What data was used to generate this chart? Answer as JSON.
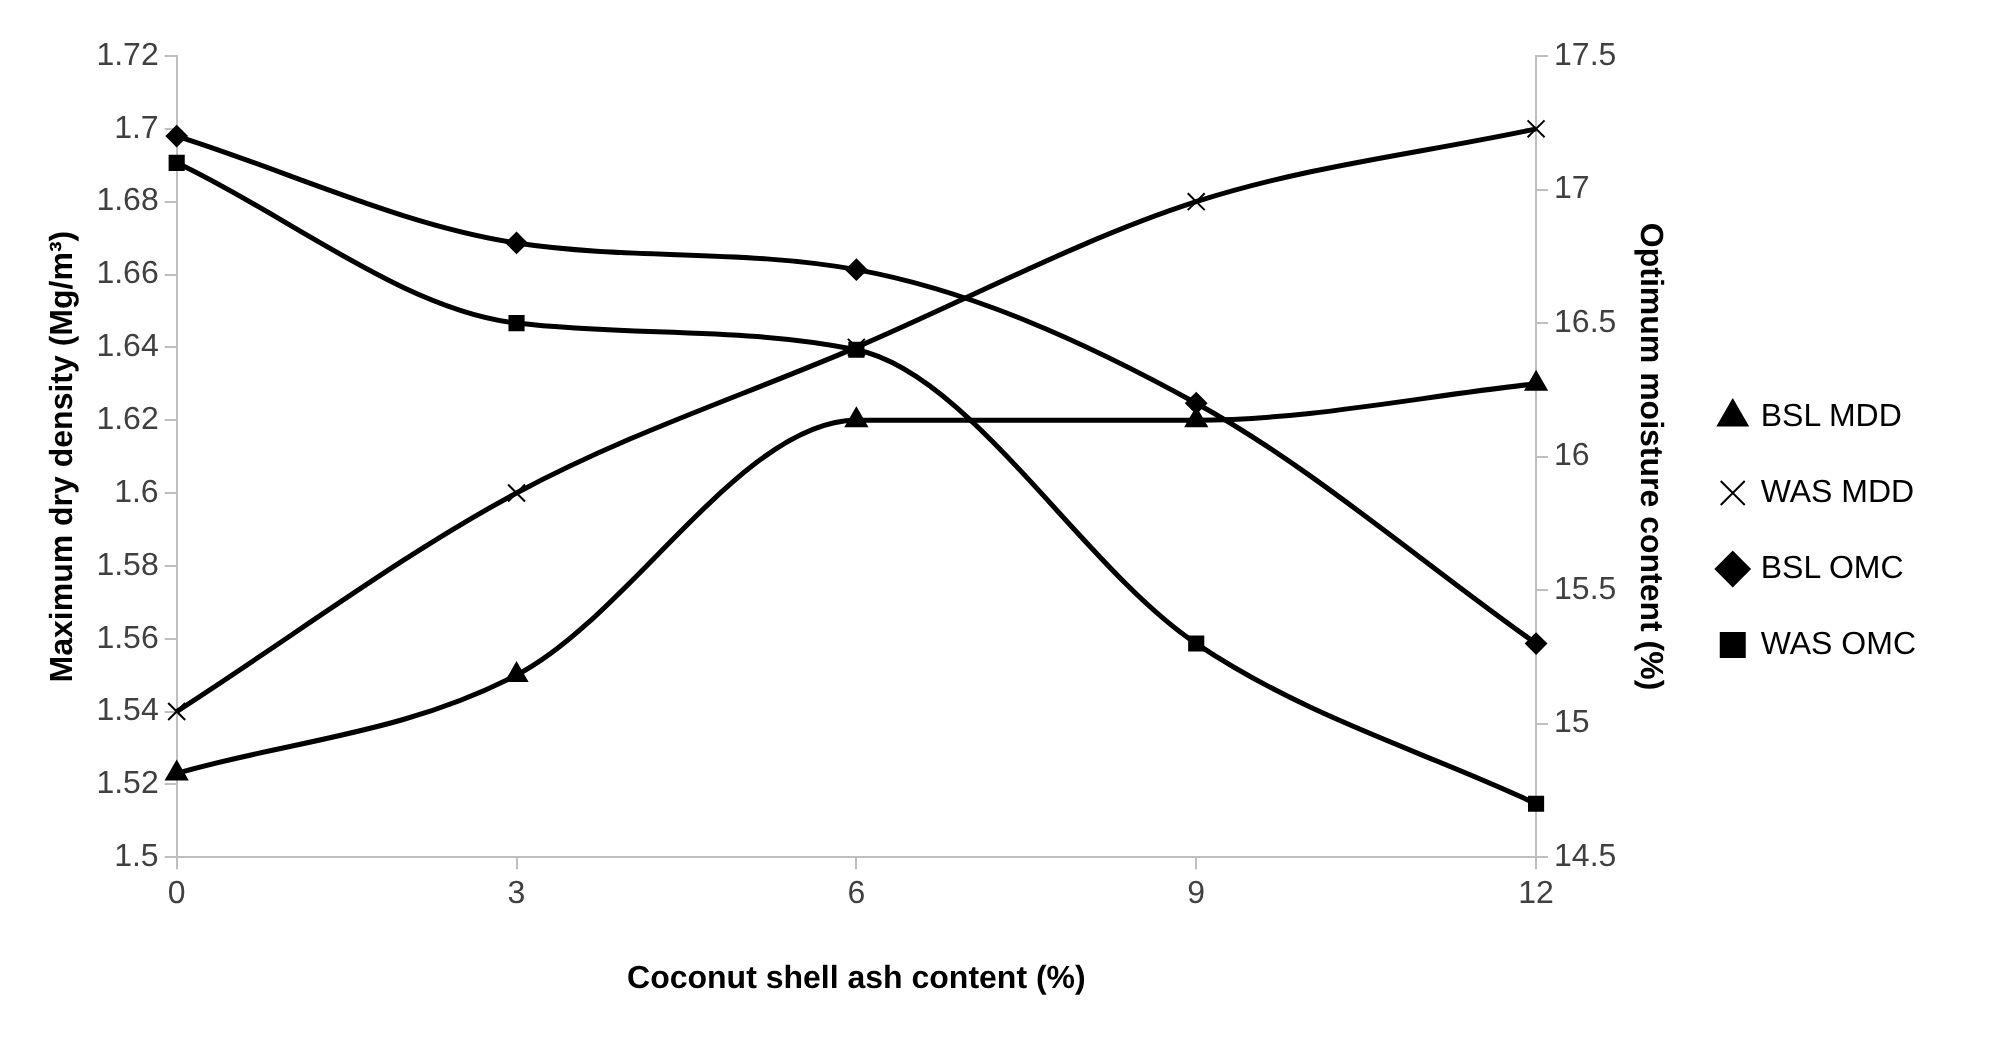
{
  "chart_data": {
    "type": "line",
    "xlabel": "Coconut shell ash content (%)",
    "ylabel": "Maximum dry density (Mg/m³)",
    "y2label": "Optimum moisture content (%)",
    "categories": [
      "0",
      "3",
      "6",
      "9",
      "12"
    ],
    "series": [
      {
        "name": "BSL MDD",
        "color": "#000000",
        "marker": "triangle",
        "values": [
          1.523,
          1.55,
          1.62,
          1.62,
          1.63
        ]
      },
      {
        "name": "WAS MDD",
        "color": "#000000",
        "marker": "cross",
        "values": [
          1.54,
          1.6,
          1.64,
          1.68,
          1.7
        ]
      },
      {
        "name": "BSL OMC",
        "color": "#000000",
        "marker": "diamond",
        "axis": "y2",
        "values": [
          17.2,
          16.8,
          16.7,
          16.2,
          15.3
        ]
      },
      {
        "name": "WAS OMC",
        "color": "#000000",
        "marker": "square",
        "axis": "y2",
        "values": [
          17.1,
          16.5,
          16.4,
          15.3,
          14.7
        ]
      }
    ],
    "ylim": [
      1.5,
      1.72
    ],
    "yticks": [
      1.5,
      1.52,
      1.54,
      1.56,
      1.58,
      1.6,
      1.62,
      1.64,
      1.66,
      1.68,
      1.7,
      1.72
    ],
    "y2lim": [
      14.5,
      17.5
    ],
    "y2ticks": [
      14.5,
      15,
      15.5,
      16,
      16.5,
      17,
      17.5
    ],
    "grid": false,
    "legend": "right"
  }
}
